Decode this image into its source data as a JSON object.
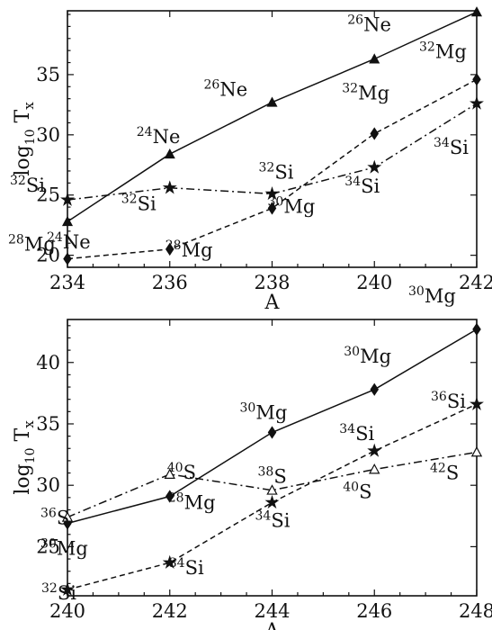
{
  "chart_data": [
    {
      "type": "line",
      "xlabel": "A",
      "ylabel_main": "log",
      "ylabel_sub": "10",
      "ylabel_end": " T",
      "ylabel_end_sub": "x",
      "xlim": [
        234,
        242
      ],
      "ylim": [
        19,
        40.3
      ],
      "xticks": [
        234,
        236,
        238,
        240,
        242
      ],
      "yticks": [
        20,
        25,
        30,
        35
      ],
      "series": [
        {
          "style": "solid",
          "marker": "triangle",
          "x": [
            234,
            236,
            238,
            240,
            242
          ],
          "y": [
            22.8,
            28.4,
            32.7,
            36.3,
            40.2
          ],
          "labels": [
            {
              "x": 234,
              "y": 22.8,
              "mass": "24",
              "el": "Ne"
            },
            {
              "x": 236,
              "y": 28.4,
              "mass": "24",
              "el": "Ne"
            },
            {
              "x": 238,
              "y": 32.7,
              "mass": "26",
              "el": "Ne"
            },
            {
              "x": 240,
              "y": 36.3,
              "mass": "26",
              "el": "Ne"
            },
            {
              "x": 242,
              "y": 40.2,
              "mass": "26",
              "el": "Ne"
            }
          ]
        },
        {
          "style": "dashed",
          "marker": "diamond",
          "x": [
            234,
            236,
            238,
            240,
            242
          ],
          "y": [
            19.7,
            20.5,
            23.9,
            30.1,
            34.6
          ],
          "labels": [
            {
              "x": 234,
              "y": 19.7,
              "mass": "28",
              "el": "Mg"
            },
            {
              "x": 236,
              "y": 20.5,
              "mass": "28",
              "el": "Mg"
            },
            {
              "x": 238,
              "y": 23.9,
              "mass": "30",
              "el": "Mg"
            },
            {
              "x": 240,
              "y": 30.1,
              "mass": "32",
              "el": "Mg"
            },
            {
              "x": 242,
              "y": 34.6,
              "mass": "32",
              "el": "Mg"
            }
          ]
        },
        {
          "style": "dashdot",
          "marker": "star",
          "x": [
            234,
            236,
            238,
            240,
            242
          ],
          "y": [
            24.6,
            25.6,
            25.1,
            27.3,
            32.6
          ],
          "labels": [
            {
              "x": 234,
              "y": 24.6,
              "mass": "32",
              "el": "Si"
            },
            {
              "x": 236,
              "y": 25.6,
              "mass": "32",
              "el": "Si"
            },
            {
              "x": 238,
              "y": 25.1,
              "mass": "32",
              "el": "Si"
            },
            {
              "x": 240,
              "y": 27.3,
              "mass": "34",
              "el": "Si"
            },
            {
              "x": 242,
              "y": 32.6,
              "mass": "34",
              "el": "Si"
            }
          ]
        }
      ]
    },
    {
      "type": "line",
      "xlabel": "A",
      "ylabel_main": "log",
      "ylabel_sub": "10",
      "ylabel_end": " T",
      "ylabel_end_sub": "x",
      "xlim": [
        240,
        248
      ],
      "ylim": [
        21,
        43.5
      ],
      "xticks": [
        240,
        242,
        244,
        246,
        248
      ],
      "yticks": [
        25,
        30,
        35,
        40
      ],
      "series": [
        {
          "style": "solid",
          "marker": "diamond",
          "x": [
            240,
            242,
            244,
            246,
            248
          ],
          "y": [
            26.9,
            29.1,
            34.3,
            37.8,
            42.7
          ],
          "labels": [
            {
              "x": 240,
              "y": 26.9,
              "mass": "30",
              "el": "Mg"
            },
            {
              "x": 242,
              "y": 29.1,
              "mass": "28",
              "el": "Mg"
            },
            {
              "x": 244,
              "y": 34.3,
              "mass": "30",
              "el": "Mg"
            },
            {
              "x": 246,
              "y": 37.8,
              "mass": "30",
              "el": "Mg"
            },
            {
              "x": 248,
              "y": 42.7,
              "mass": "30",
              "el": "Mg"
            }
          ]
        },
        {
          "style": "dashed",
          "marker": "star",
          "x": [
            240,
            242,
            244,
            246,
            248
          ],
          "y": [
            21.5,
            23.7,
            28.6,
            32.8,
            36.6
          ],
          "labels": [
            {
              "x": 240,
              "y": 21.5,
              "mass": "32",
              "el": "Si"
            },
            {
              "x": 242,
              "y": 23.7,
              "mass": "34",
              "el": "Si"
            },
            {
              "x": 244,
              "y": 28.6,
              "mass": "34",
              "el": "Si"
            },
            {
              "x": 246,
              "y": 32.8,
              "mass": "34",
              "el": "Si"
            },
            {
              "x": 248,
              "y": 36.6,
              "mass": "36",
              "el": "Si"
            }
          ]
        },
        {
          "style": "dashdot",
          "marker": "open-triangle",
          "x": [
            240,
            242,
            244,
            246,
            248
          ],
          "y": [
            27.4,
            30.9,
            29.6,
            31.3,
            32.7
          ],
          "labels": [
            {
              "x": 240,
              "y": 27.4,
              "mass": "36",
              "el": "S"
            },
            {
              "x": 242,
              "y": 30.9,
              "mass": "40",
              "el": "S"
            },
            {
              "x": 244,
              "y": 29.6,
              "mass": "38",
              "el": "S"
            },
            {
              "x": 246,
              "y": 31.3,
              "mass": "40",
              "el": "S"
            },
            {
              "x": 248,
              "y": 32.7,
              "mass": "42",
              "el": "S"
            }
          ]
        }
      ]
    }
  ]
}
